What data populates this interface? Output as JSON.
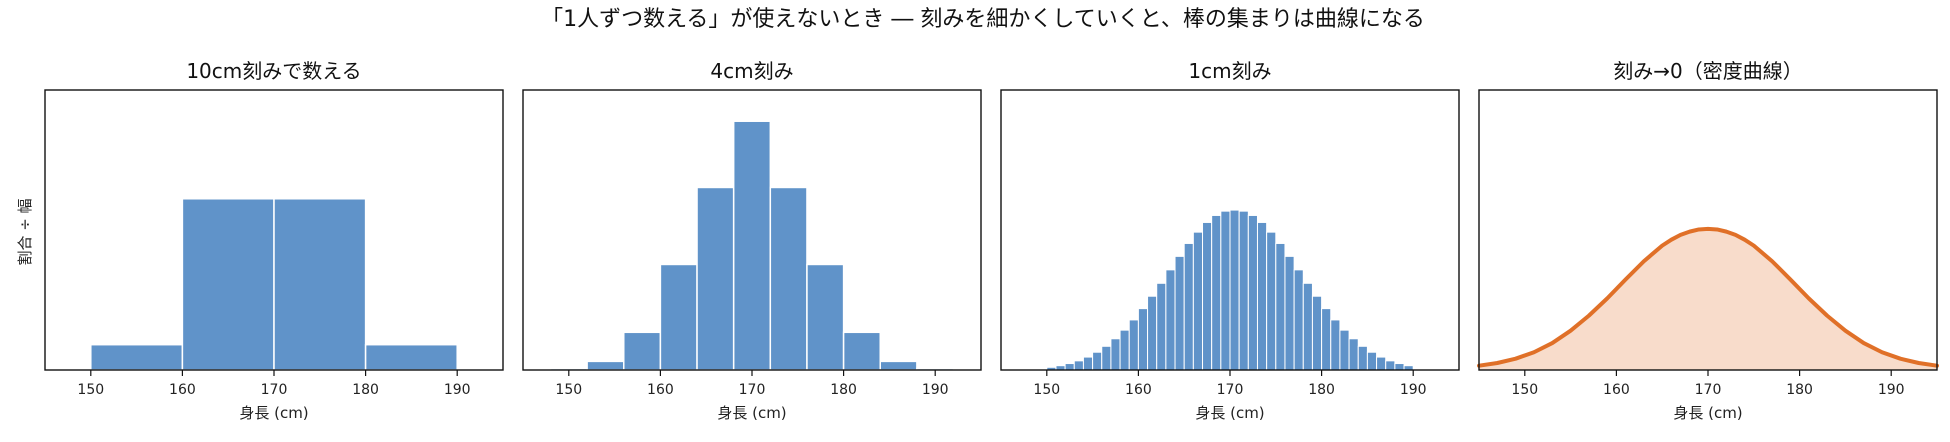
{
  "figure": {
    "title": "「1人ずつ数える」が使えないとき ― 刻みを細かくしていくと、棒の集まりは曲線になる",
    "ylabel": "割合 ÷ 幅"
  },
  "chart_data": [
    {
      "type": "bar",
      "title": "10cm刻みで数える",
      "xlabel": "身長 (cm)",
      "ylabel": "割合 ÷ 幅",
      "xlim": [
        145,
        195
      ],
      "xticks": [
        150,
        160,
        170,
        180,
        190
      ],
      "ylim": [
        0,
        0.052
      ],
      "bin_width": 10,
      "bar_color": "#6093c9",
      "bin_edges": [
        150,
        160,
        170,
        180,
        190
      ],
      "values": [
        0.0047,
        0.0318,
        0.0318,
        0.0047
      ]
    },
    {
      "type": "bar",
      "title": "4cm刻み",
      "xlabel": "身長 (cm)",
      "xlim": [
        145,
        195
      ],
      "xticks": [
        150,
        160,
        170,
        180,
        190
      ],
      "ylim": [
        0,
        0.052
      ],
      "bin_width": 4,
      "bar_color": "#6093c9",
      "bin_edges": [
        148,
        152,
        156,
        160,
        164,
        168,
        172,
        176,
        180,
        184,
        188,
        192
      ],
      "values": [
        0.0003,
        0.0016,
        0.007,
        0.0196,
        0.0339,
        0.0462,
        0.0339,
        0.0196,
        0.007,
        0.0016,
        0.0003
      ]
    },
    {
      "type": "bar",
      "title": "1cm刻み",
      "xlabel": "身長 (cm)",
      "xlim": [
        145,
        195
      ],
      "xticks": [
        150,
        160,
        170,
        180,
        190
      ],
      "ylim": [
        0,
        0.052
      ],
      "bin_width": 1,
      "bar_color": "#6093c9",
      "bin_edges": [
        150,
        151,
        152,
        153,
        154,
        155,
        156,
        157,
        158,
        159,
        160,
        161,
        162,
        163,
        164,
        165,
        166,
        167,
        168,
        169,
        170,
        171,
        172,
        173,
        174,
        175,
        176,
        177,
        178,
        179,
        180,
        181,
        182,
        183,
        184,
        185,
        186,
        187,
        188,
        189,
        190
      ],
      "values": [
        0.0005,
        0.0008,
        0.0012,
        0.0017,
        0.0024,
        0.0033,
        0.0044,
        0.0058,
        0.0074,
        0.0093,
        0.0114,
        0.0137,
        0.0161,
        0.0186,
        0.0211,
        0.0235,
        0.0256,
        0.0274,
        0.0287,
        0.0295,
        0.0297,
        0.0295,
        0.0287,
        0.0274,
        0.0256,
        0.0235,
        0.0211,
        0.0186,
        0.0161,
        0.0137,
        0.0114,
        0.0093,
        0.0074,
        0.0058,
        0.0044,
        0.0033,
        0.0024,
        0.0017,
        0.0012,
        0.0008
      ]
    },
    {
      "type": "area",
      "title": "刻み→0（密度曲線）",
      "xlabel": "身長 (cm)",
      "xlim": [
        145,
        195
      ],
      "xticks": [
        150,
        160,
        170,
        180,
        190
      ],
      "ylim": [
        0,
        0.052
      ],
      "line_color": "#e07028",
      "fill_color": "#f8dccb",
      "x": [
        145,
        147,
        149,
        151,
        153,
        155,
        157,
        159,
        161,
        163,
        165,
        166,
        167,
        168,
        169,
        170,
        171,
        172,
        173,
        174,
        175,
        177,
        179,
        181,
        183,
        185,
        187,
        189,
        191,
        193,
        195
      ],
      "y": [
        0.0008,
        0.0013,
        0.0021,
        0.0033,
        0.005,
        0.0073,
        0.0101,
        0.0133,
        0.0168,
        0.0202,
        0.0231,
        0.0242,
        0.0251,
        0.0257,
        0.0261,
        0.0262,
        0.0261,
        0.0257,
        0.0251,
        0.0242,
        0.0231,
        0.0202,
        0.0168,
        0.0133,
        0.0101,
        0.0073,
        0.005,
        0.0033,
        0.0021,
        0.0013,
        0.0008
      ]
    }
  ]
}
